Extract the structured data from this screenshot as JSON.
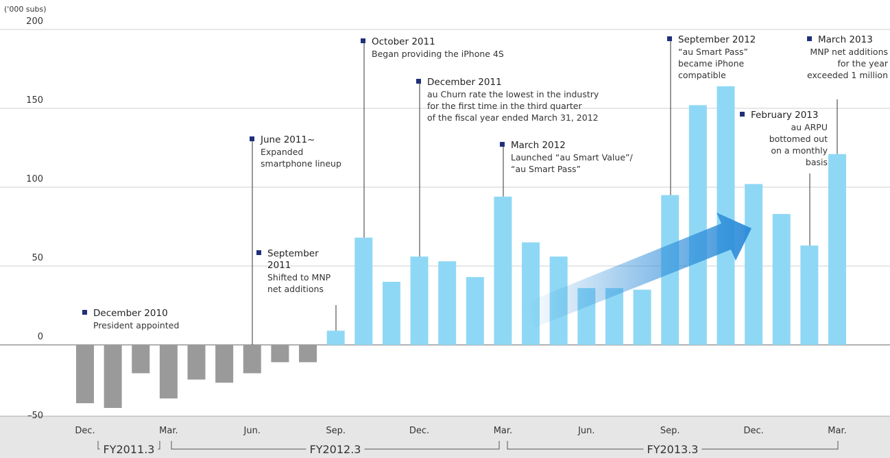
{
  "chart_data": {
    "type": "bar",
    "y_unit_label": "('000 subs)",
    "categories": [
      "Dec.",
      null,
      null,
      "Mar.",
      null,
      null,
      "Jun.",
      null,
      null,
      "Sep.",
      null,
      null,
      "Dec.",
      null,
      null,
      "Mar.",
      null,
      null,
      "Jun.",
      null,
      null,
      "Sep.",
      null,
      null,
      "Dec.",
      null,
      null,
      "Mar."
    ],
    "values": [
      -37,
      -40,
      -18,
      -34,
      -22,
      -24,
      -18,
      -11,
      -11,
      9,
      68,
      40,
      56,
      53,
      43,
      94,
      65,
      56,
      36,
      36,
      35,
      95,
      152,
      164,
      102,
      83,
      63,
      121
    ],
    "color": "#8fd8f5",
    "negative_color": "#9a9a9a",
    "ylim": [
      -50,
      200
    ],
    "yticks": [
      {
        "value": -50,
        "label": "–50"
      },
      0,
      50,
      100,
      150,
      200
    ],
    "grid": true,
    "fiscal_years": [
      "FY2011.3",
      "FY2012.3",
      "FY2013.3"
    ],
    "annotations": [
      {
        "title": "December 2010",
        "lines": [
          "President appointed"
        ]
      },
      {
        "title": "June 2011~",
        "lines": [
          "Expanded",
          "smartphone lineup"
        ]
      },
      {
        "title": "September 2011",
        "lines": [
          "Shifted to MNP",
          "net additions"
        ]
      },
      {
        "title": "October 2011",
        "lines": [
          "Began providing the iPhone 4S"
        ]
      },
      {
        "title": "December 2011",
        "lines": [
          "au Churn rate the lowest in the industry",
          "for the first time in the third quarter",
          "of the fiscal year ended March 31, 2012"
        ]
      },
      {
        "title": "March 2012",
        "lines": [
          "Launched “au Smart Value”/",
          "“au Smart Pass”"
        ]
      },
      {
        "title": "September 2012",
        "lines": [
          "“au Smart Pass”",
          "became iPhone",
          "compatible"
        ]
      },
      {
        "title": "March 2013",
        "lines": [
          "MNP net additions",
          "for the year",
          "exceeded 1 million"
        ]
      },
      {
        "title": "February 2013",
        "lines": [
          "au ARPU",
          "bottomed out",
          "on a monthly",
          "basis"
        ]
      }
    ]
  }
}
